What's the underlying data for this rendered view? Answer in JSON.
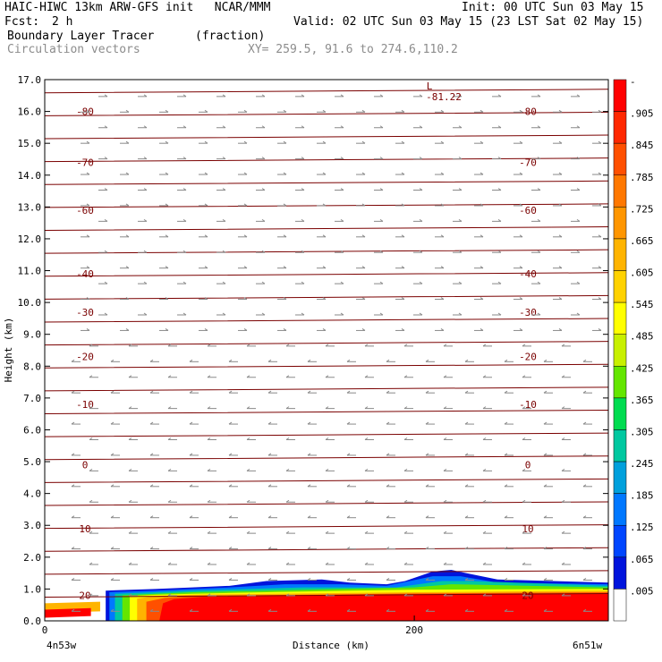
{
  "header": {
    "title": "HAIC-HIWC 13km ARW-GFS init   NCAR/MMM",
    "init": "Init: 00 UTC Sun 03 May 15",
    "fcst_label": "Fcst:",
    "fcst_value": "2 h",
    "valid": "Valid: 02 UTC Sun 03 May 15 (23 LST Sat 02 May 15)",
    "field1_name": "Boundary Layer Tracer",
    "field1_units": "(fraction)",
    "field2_name": "Circulation vectors",
    "xy_range": "XY= 259.5, 91.6 to 274.6,110.2"
  },
  "chart_data": {
    "type": "cross-section",
    "ylabel": "Height (km)",
    "xlabel": "Distance (km)",
    "ylim": [
      0,
      17
    ],
    "xlim": [
      0,
      305
    ],
    "y_ticks": [
      "0.0",
      "1.0",
      "2.0",
      "3.0",
      "4.0",
      "5.0",
      "6.0",
      "7.0",
      "8.0",
      "9.0",
      "10.0",
      "11.0",
      "12.0",
      "13.0",
      "14.0",
      "15.0",
      "16.0",
      "17.0"
    ],
    "x_ticks": [
      {
        "value": 0,
        "label": "0"
      },
      {
        "value": 200,
        "label": "200"
      }
    ],
    "x_end_labels": [
      "4n53w",
      "6n51w"
    ],
    "colorbar_labels": [
      "-",
      ".905",
      ".845",
      ".785",
      ".725",
      ".665",
      ".605",
      ".545",
      ".485",
      ".425",
      ".365",
      ".305",
      ".245",
      ".185",
      ".125",
      ".065",
      ".005"
    ],
    "colorbar_colors": [
      "#ff0000",
      "#ff2800",
      "#ff5000",
      "#ff7800",
      "#ff9600",
      "#ffb400",
      "#ffd200",
      "#ffff00",
      "#c8f000",
      "#64e600",
      "#00dc50",
      "#00c8a0",
      "#00a0dc",
      "#0078ff",
      "#0046ff",
      "#0014dc",
      "#ffffff"
    ],
    "temperature_contours": [
      {
        "label": "-80",
        "height": 16.0
      },
      {
        "label": "-70",
        "height": 14.4
      },
      {
        "label": "-60",
        "height": 12.9
      },
      {
        "label": "-40",
        "height": 10.9
      },
      {
        "label": "-30",
        "height": 9.7
      },
      {
        "label": "-20",
        "height": 8.3
      },
      {
        "label": "-10",
        "height": 6.8
      },
      {
        "label": "0",
        "height": 4.9
      },
      {
        "label": "10",
        "height": 2.9
      },
      {
        "label": "20",
        "height": 0.8
      }
    ],
    "low_marker": {
      "symbol": "L",
      "value": "-81.22"
    }
  }
}
